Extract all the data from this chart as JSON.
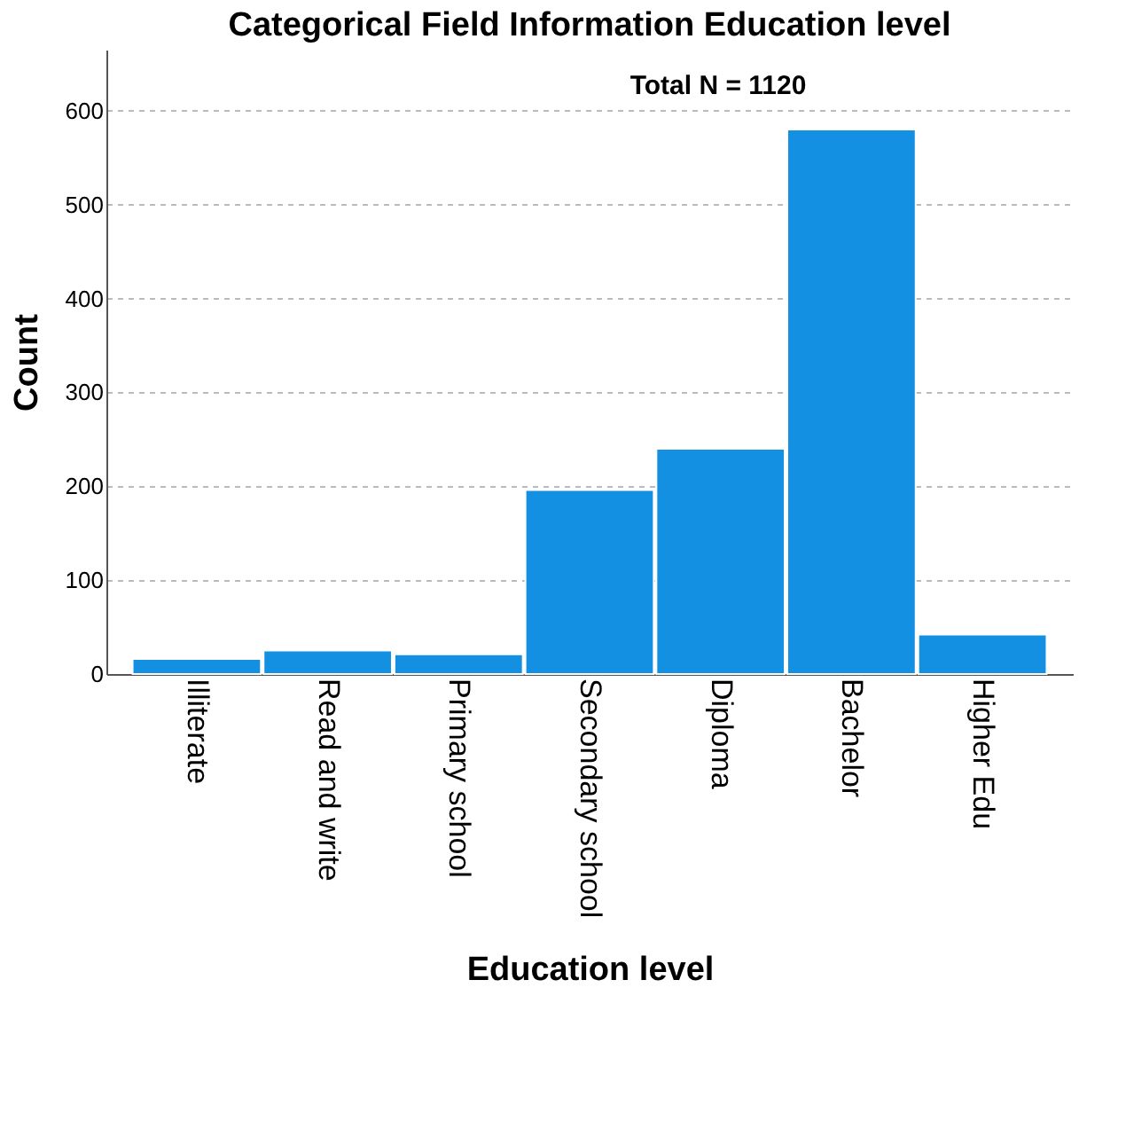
{
  "chart_data": {
    "type": "bar",
    "title": "Categorical Field Information Education level",
    "xlabel": "Education level",
    "ylabel": "Count",
    "categories": [
      "Illiterate",
      "Read and write",
      "Primary school",
      "Secondary school",
      "Diploma",
      "Bachelor",
      "Higher Edu"
    ],
    "values": [
      16,
      25,
      21,
      196,
      240,
      580,
      42
    ],
    "color": "#1490e3",
    "ylim": [
      0,
      665
    ],
    "yticks": [
      0,
      100,
      200,
      300,
      400,
      500,
      600
    ],
    "grid": "y",
    "annotations": [
      "Total N =  1120"
    ]
  }
}
